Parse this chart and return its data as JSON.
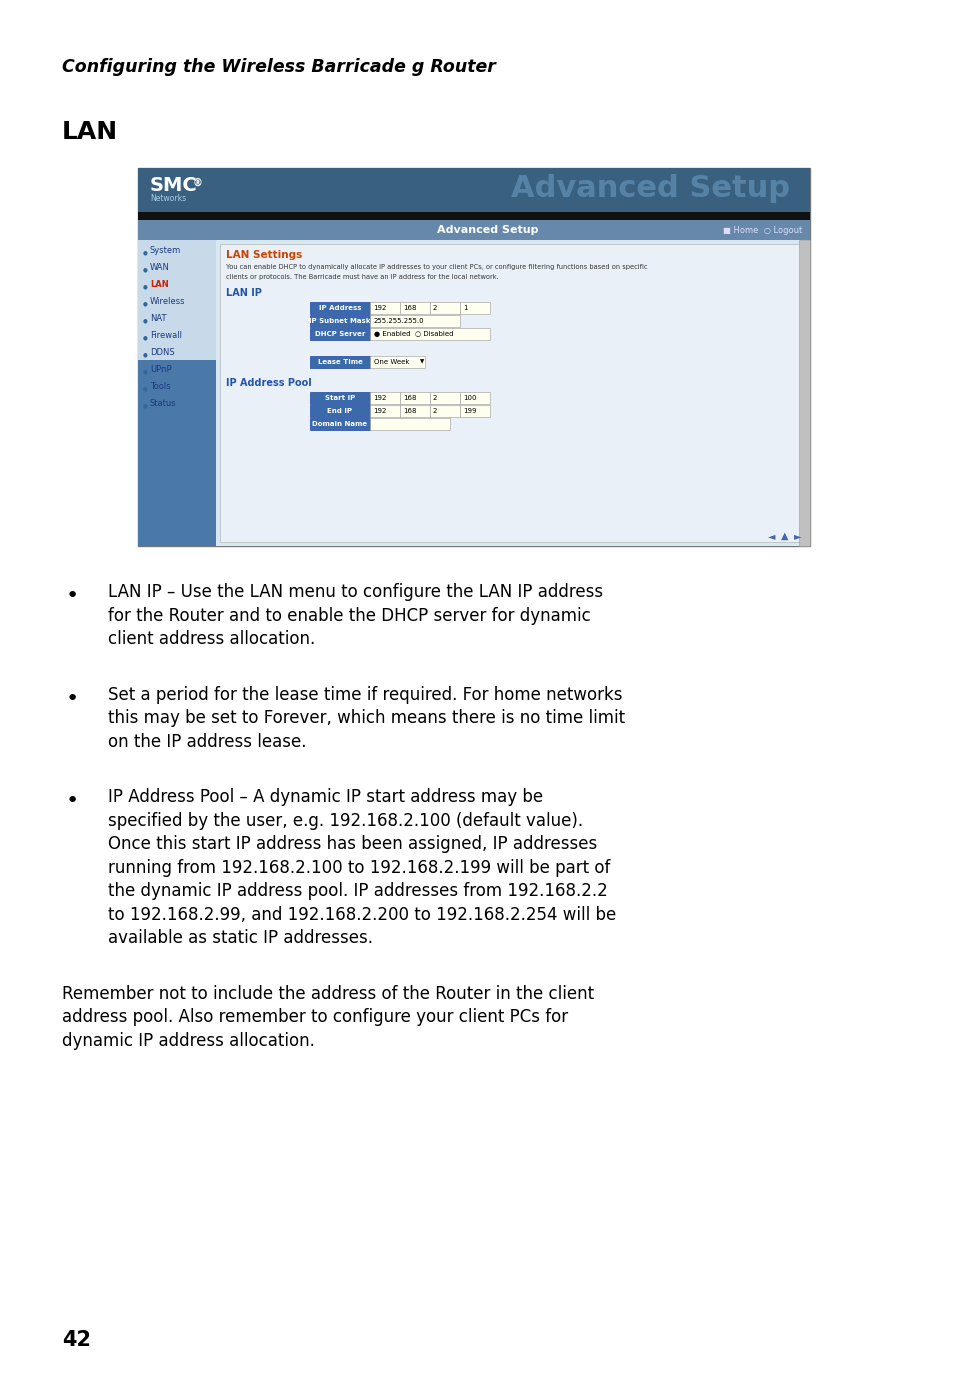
{
  "bg_color": "#ffffff",
  "header_text": "Configuring the Wireless Barricade g Router",
  "section_title": "LAN",
  "page_number": "42",
  "bullet_points": [
    [
      "LAN IP – Use the LAN menu to configure the LAN IP address",
      "for the Router and to enable the DHCP server for dynamic",
      "client address allocation."
    ],
    [
      "Set a period for the lease time if required. For home networks",
      "this may be set to Forever, which means there is no time limit",
      "on the IP address lease."
    ],
    [
      "IP Address Pool – A dynamic IP start address may be",
      "specified by the user, e.g. 192.168.2.100 (default value).",
      "Once this start IP address has been assigned, IP addresses",
      "running from 192.168.2.100 to 192.168.2.199 will be part of",
      "the dynamic IP address pool. IP addresses from 192.168.2.2",
      "to 192.168.2.99, and 192.168.2.200 to 192.168.2.254 will be",
      "available as static IP addresses."
    ]
  ],
  "paragraph": [
    "Remember not to include the address of the Router in the client",
    "address pool. Also remember to configure your client PCs for",
    "dynamic IP address allocation."
  ],
  "screenshot": {
    "outer_bg": "#b8cfe0",
    "header_bg": "#2a4f7a",
    "header_text_color": "#ffffff",
    "nav_bg": "#c8daea",
    "content_bg": "#d8e8f0",
    "label_color": "#2255aa",
    "button_bg": "#3a6aaa",
    "button_text_color": "#ffffff",
    "field_bg": "#fffff0",
    "field_border": "#888888",
    "nav_items": [
      "System",
      "WAN",
      "LAN",
      "Wireless",
      "NAT",
      "Firewall",
      "DDNS",
      "UPnP",
      "Tools",
      "Status"
    ],
    "ip_address_values": [
      "192",
      "168",
      "2",
      "1"
    ],
    "subnet_mask_value": "255.255.255.0",
    "lease_time_value": "One Week",
    "start_ip_values": [
      "192",
      "168",
      "2",
      "100"
    ],
    "end_ip_values": [
      "192",
      "168",
      "2",
      "199"
    ]
  }
}
